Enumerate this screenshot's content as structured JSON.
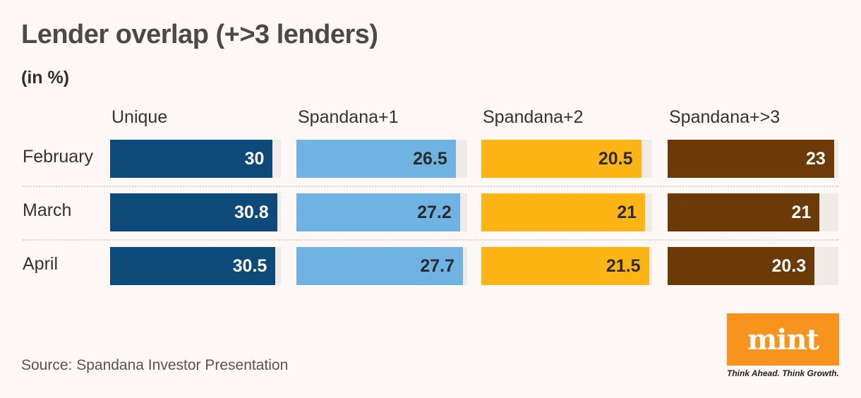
{
  "title": "Lender overlap (+>3 lenders)",
  "subtitle": "(in %)",
  "source": "Source: Spandana Investor Presentation",
  "logo": {
    "text": "mint",
    "tagline": "Think Ahead. Think Growth.",
    "color": "#f7941d"
  },
  "chart_data": {
    "type": "bar",
    "orientation": "horizontal",
    "title": "Lender overlap (+>3 lenders)",
    "subtitle": "(in %)",
    "categories": [
      "February",
      "March",
      "April"
    ],
    "series": [
      {
        "name": "Unique",
        "values": [
          30,
          30.8,
          30.5
        ],
        "color": "#0d4a7a",
        "text_color": "#ffffff"
      },
      {
        "name": "Spandana+1",
        "values": [
          26.5,
          27.2,
          27.7
        ],
        "color": "#6fb3e3",
        "text_color": "#2b2b2b"
      },
      {
        "name": "Spandana+2",
        "values": [
          20.5,
          21,
          21.5
        ],
        "color": "#fdb515",
        "text_color": "#2b2b2b"
      },
      {
        "name": "Spandana+>3",
        "values": [
          23,
          21,
          20.3
        ],
        "color": "#6b3a06",
        "text_color": "#ffffff"
      }
    ],
    "xlim_per_series": [
      31.5,
      28.4,
      21.9,
      23.6
    ],
    "grid": false,
    "legend": "column-headers"
  }
}
